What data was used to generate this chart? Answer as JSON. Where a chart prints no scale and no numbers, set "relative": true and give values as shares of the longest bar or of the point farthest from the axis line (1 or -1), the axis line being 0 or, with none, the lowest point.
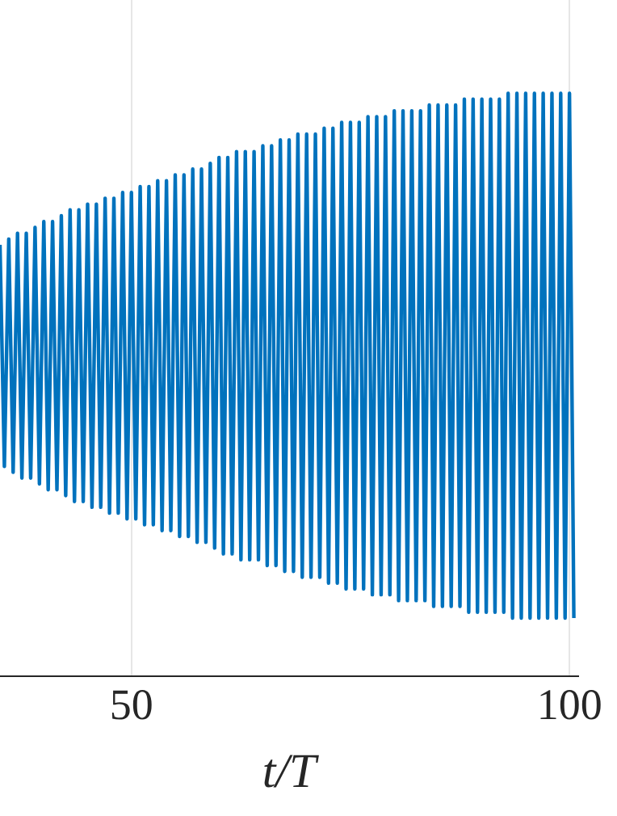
{
  "chart_data": {
    "type": "line",
    "xlabel": "t/T",
    "relative": true,
    "xlim": [
      35,
      101
    ],
    "xticks": [
      50,
      100
    ],
    "grid": "x",
    "marker": "none",
    "legend": false,
    "x": [
      35,
      35.5,
      36,
      36.5,
      37,
      37.5,
      38,
      38.5,
      39,
      39.5,
      40,
      40.5,
      41,
      41.5,
      42,
      42.5,
      43,
      43.5,
      44,
      44.5,
      45,
      45.5,
      46,
      46.5,
      47,
      47.5,
      48,
      48.5,
      49,
      49.5,
      50,
      50.5,
      51,
      51.5,
      52,
      52.5,
      53,
      53.5,
      54,
      54.5,
      55,
      55.5,
      56,
      56.5,
      57,
      57.5,
      58,
      58.5,
      59,
      59.5,
      60,
      60.5,
      61,
      61.5,
      62,
      62.5,
      63,
      63.5,
      64,
      64.5,
      65,
      65.5,
      66,
      66.5,
      67,
      67.5,
      68,
      68.5,
      69,
      69.5,
      70,
      70.5,
      71,
      71.5,
      72,
      72.5,
      73,
      73.5,
      74,
      74.5,
      75,
      75.5,
      76,
      76.5,
      77,
      77.5,
      78,
      78.5,
      79,
      79.5,
      80,
      80.5,
      81,
      81.5,
      82,
      82.5,
      83,
      83.5,
      84,
      84.5,
      85,
      85.5,
      86,
      86.5,
      87,
      87.5,
      88,
      88.5,
      89,
      89.5,
      90,
      90.5,
      91,
      91.5,
      92,
      92.5,
      93,
      93.5,
      94,
      94.5,
      95,
      95.5,
      96,
      96.5,
      97,
      97.5,
      98,
      98.5,
      99,
      99.5,
      100,
      100.5
    ],
    "series": [
      {
        "color": "#0072bd",
        "values": [
          0.74,
          0.36,
          0.75,
          0.35,
          0.76,
          0.34,
          0.76,
          0.34,
          0.77,
          0.33,
          0.78,
          0.32,
          0.78,
          0.32,
          0.79,
          0.31,
          0.8,
          0.3,
          0.8,
          0.3,
          0.81,
          0.29,
          0.81,
          0.29,
          0.82,
          0.28,
          0.82,
          0.28,
          0.83,
          0.27,
          0.83,
          0.27,
          0.84,
          0.26,
          0.84,
          0.26,
          0.85,
          0.25,
          0.85,
          0.25,
          0.86,
          0.24,
          0.86,
          0.24,
          0.87,
          0.23,
          0.87,
          0.23,
          0.88,
          0.22,
          0.89,
          0.21,
          0.89,
          0.21,
          0.9,
          0.2,
          0.9,
          0.2,
          0.9,
          0.2,
          0.91,
          0.19,
          0.91,
          0.19,
          0.92,
          0.18,
          0.92,
          0.18,
          0.93,
          0.17,
          0.93,
          0.17,
          0.93,
          0.17,
          0.94,
          0.16,
          0.94,
          0.16,
          0.95,
          0.15,
          0.95,
          0.15,
          0.95,
          0.15,
          0.96,
          0.14,
          0.96,
          0.14,
          0.96,
          0.14,
          0.97,
          0.13,
          0.97,
          0.13,
          0.97,
          0.13,
          0.97,
          0.13,
          0.98,
          0.12,
          0.98,
          0.12,
          0.98,
          0.12,
          0.98,
          0.12,
          0.99,
          0.11,
          0.99,
          0.11,
          0.99,
          0.11,
          0.99,
          0.11,
          0.99,
          0.11,
          1.0,
          0.1,
          1.0,
          0.1,
          1.0,
          0.1,
          1.0,
          0.1,
          1.0,
          0.1,
          1.0,
          0.1,
          1.0,
          0.1,
          1.0,
          0.1
        ]
      }
    ]
  }
}
